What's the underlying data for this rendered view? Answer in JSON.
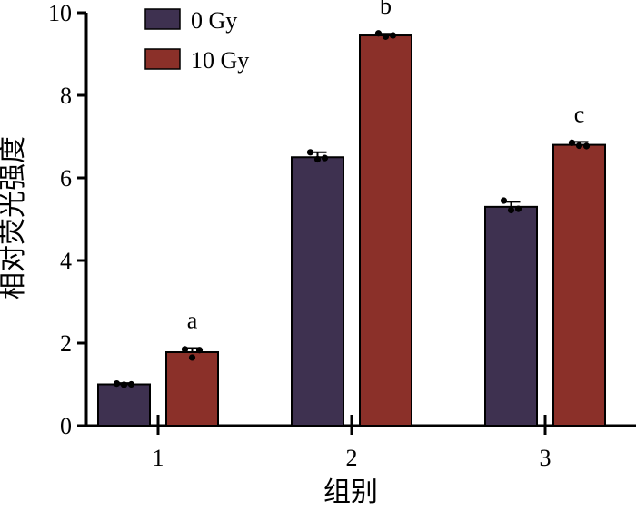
{
  "chart_data": {
    "type": "bar",
    "title": "",
    "xlabel": "组别",
    "ylabel": "相对荧光强度",
    "categories": [
      "1",
      "2",
      "3"
    ],
    "ylim": [
      0,
      10
    ],
    "yticks": [
      0,
      2,
      4,
      6,
      8,
      10
    ],
    "grid": false,
    "legend_position": "top-left",
    "series": [
      {
        "name": "0 Gy",
        "color": "#3e3150",
        "values": [
          1.0,
          6.5,
          5.3
        ],
        "errors": [
          0.03,
          0.12,
          0.12
        ],
        "points": [
          [
            1.02,
            0.99,
            1.0
          ],
          [
            6.62,
            6.45,
            6.48
          ],
          [
            5.45,
            5.22,
            5.25
          ]
        ]
      },
      {
        "name": "10 Gy",
        "color": "#8b3029",
        "values": [
          1.78,
          9.45,
          6.8
        ],
        "errors": [
          0.1,
          0.04,
          0.07
        ],
        "points": [
          [
            1.85,
            1.65,
            1.83
          ],
          [
            9.5,
            9.42,
            9.45
          ],
          [
            6.85,
            6.78,
            6.77
          ]
        ]
      }
    ],
    "annotations": [
      {
        "category": "1",
        "series": "10 Gy",
        "text": "a"
      },
      {
        "category": "2",
        "series": "10 Gy",
        "text": "b"
      },
      {
        "category": "3",
        "series": "10 Gy",
        "text": "c"
      }
    ]
  }
}
